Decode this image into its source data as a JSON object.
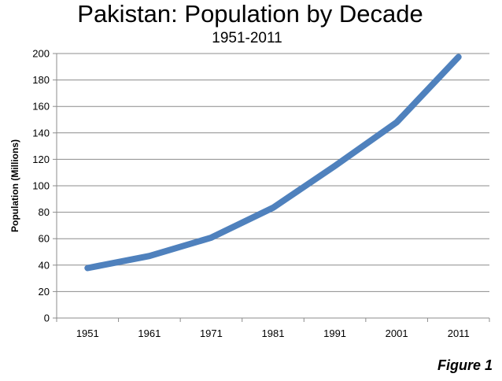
{
  "chart_data": {
    "type": "line",
    "title": "Pakistan: Population by Decade",
    "subtitle": "1951-2011",
    "xlabel": "",
    "ylabel": "Population (Millions)",
    "categories": [
      "1951",
      "1961",
      "1971",
      "1981",
      "1991",
      "2001",
      "2011"
    ],
    "series": [
      {
        "values": [
          37.8,
          46.9,
          60.8,
          83.4,
          115,
          148,
          197.4
        ],
        "color": "#4f81bd"
      }
    ],
    "ylim": [
      0,
      200
    ],
    "yticks": [
      0,
      20,
      40,
      60,
      80,
      100,
      120,
      140,
      160,
      180,
      200
    ],
    "grid": true,
    "legend": "none"
  },
  "caption": "Figure 1"
}
